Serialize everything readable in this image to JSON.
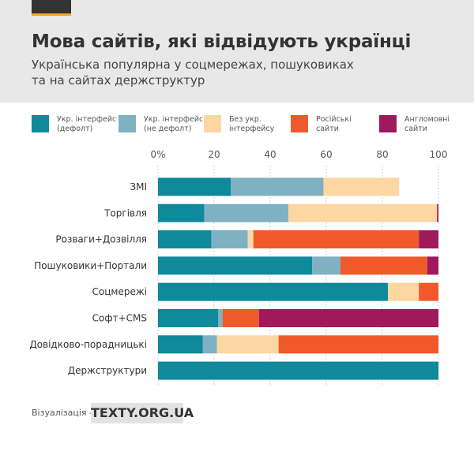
{
  "header": {
    "title": "Мова сайтів, які відвідують українці",
    "subtitle_line1": "Українська популярна у соцмережах, пошуковиках",
    "subtitle_line2": "та на сайтах держструктур"
  },
  "legend": [
    {
      "line1": "Укр. інтерфейс",
      "line2": "(дефолт)",
      "color": "#0e8a9c"
    },
    {
      "line1": "Укр. інтерфейс",
      "line2": "(не дефолт)",
      "color": "#7fb1c2"
    },
    {
      "line1": "Без укр.",
      "line2": "інтерфейсу",
      "color": "#fdd7a2"
    },
    {
      "line1": "Російські",
      "line2": "сайти",
      "color": "#f05a2a"
    },
    {
      "line1": "Англомовні",
      "line2": "сайти",
      "color": "#a0195c"
    }
  ],
  "footer": {
    "label": "Візуалізація –",
    "logo": "TEXTY.ORG.UA"
  },
  "chart_data": {
    "type": "bar",
    "orientation": "horizontal",
    "stacked": true,
    "xlim": [
      0,
      100
    ],
    "ticks": [
      0,
      20,
      40,
      60,
      80,
      100
    ],
    "tick_labels": [
      "0%",
      "20",
      "40",
      "60",
      "80",
      "100"
    ],
    "grid": true,
    "legend_position": "top",
    "categories": [
      "ЗМІ",
      "Торгівля",
      "Розваги+Дозвілля",
      "Пошуковики+Портали",
      "Соцмережі",
      "Софт+CMS",
      "Довідково-порадницькі",
      "Держструктури"
    ],
    "series": [
      {
        "name": "Укр. інтерфейс (дефолт)",
        "color": "#0e8a9c",
        "values": [
          26,
          16.5,
          19,
          55,
          82,
          21.5,
          16,
          100
        ]
      },
      {
        "name": "Укр. інтерфейс (не дефолт)",
        "color": "#7fb1c2",
        "values": [
          33,
          30,
          13,
          10,
          0,
          1.5,
          5,
          0
        ]
      },
      {
        "name": "Без укр. інтерфейсу",
        "color": "#fdd7a2",
        "values": [
          27,
          53,
          2,
          0,
          11,
          0,
          22,
          0
        ]
      },
      {
        "name": "Російські сайти",
        "color": "#f05a2a",
        "values": [
          0,
          0,
          59,
          31,
          7,
          13,
          57,
          0
        ]
      },
      {
        "name": "Англомовні сайти",
        "color": "#a0195c",
        "values": [
          0,
          0.5,
          7,
          4,
          0,
          64,
          0,
          0
        ]
      }
    ]
  }
}
